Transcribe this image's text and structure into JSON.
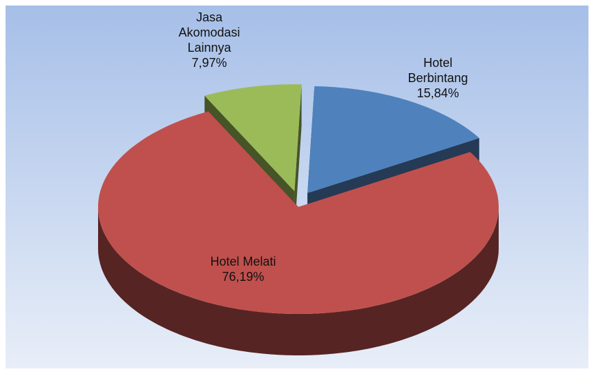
{
  "chart_data": {
    "type": "pie",
    "categories": [
      "Hotel Berbintang",
      "Hotel Melati",
      "Jasa Akomodasi Lainnya"
    ],
    "values": [
      15.84,
      76.19,
      7.97
    ],
    "value_labels": [
      "15,84%",
      "76,19%",
      "7,97%"
    ],
    "colors": [
      "#4f81bd",
      "#c0504d",
      "#9bbb59"
    ]
  }
}
